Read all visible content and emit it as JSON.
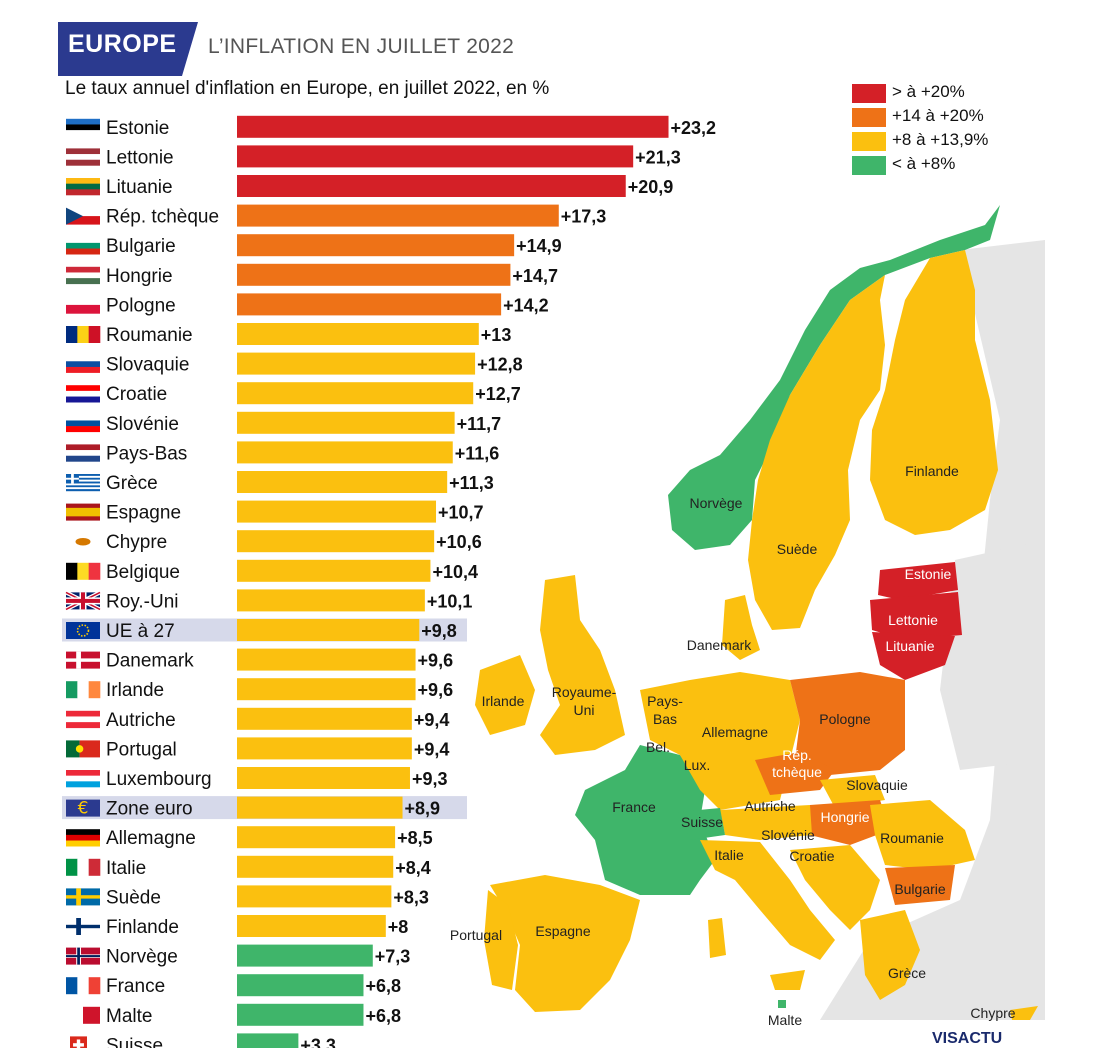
{
  "header": {
    "tag": "EUROPE",
    "title": "L’INFLATION EN JUILLET 2022",
    "subtitle": "Le taux annuel d'inflation en Europe, en juillet 2022, en %"
  },
  "legend": [
    {
      "label": "> à +20%",
      "color": "#d42027"
    },
    {
      "label": "+14 à +20%",
      "color": "#ee7217"
    },
    {
      "label": "+8 à +13,9%",
      "color": "#fbc00f"
    },
    {
      "label": "< à +8%",
      "color": "#3fb56a"
    }
  ],
  "colors": {
    "red": "#d42027",
    "orange": "#ee7217",
    "yellow": "#fbc00f",
    "green": "#3fb56a",
    "highlight": "#d6d9ea",
    "land": "#e5e5e5",
    "navy": "#2b3a8f"
  },
  "chart_data": {
    "type": "bar",
    "orientation": "horizontal",
    "title": "L’INFLATION EN JUILLET 2022",
    "subtitle": "Le taux annuel d'inflation en Europe, en juillet 2022, en %",
    "categories": [
      "Estonie",
      "Lettonie",
      "Lituanie",
      "Rép. tchèque",
      "Bulgarie",
      "Hongrie",
      "Pologne",
      "Roumanie",
      "Slovaquie",
      "Croatie",
      "Slovénie",
      "Pays-Bas",
      "Grèce",
      "Espagne",
      "Chypre",
      "Belgique",
      "Roy.-Uni",
      "UE à 27",
      "Danemark",
      "Irlande",
      "Autriche",
      "Portugal",
      "Luxembourg",
      "Zone euro",
      "Allemagne",
      "Italie",
      "Suède",
      "Finlande",
      "Norvège",
      "France",
      "Malte",
      "Suisse"
    ],
    "values": [
      23.2,
      21.3,
      20.9,
      17.3,
      14.9,
      14.7,
      14.2,
      13,
      12.8,
      12.7,
      11.7,
      11.6,
      11.3,
      10.7,
      10.6,
      10.4,
      10.1,
      9.8,
      9.6,
      9.6,
      9.4,
      9.4,
      9.3,
      8.9,
      8.5,
      8.4,
      8.3,
      8,
      7.3,
      6.8,
      6.8,
      3.3
    ],
    "value_labels": [
      "+23,2",
      "+21,3",
      "+20,9",
      "+17,3",
      "+14,9",
      "+14,7",
      "+14,2",
      "+13",
      "+12,8",
      "+12,7",
      "+11,7",
      "+11,6",
      "+11,3",
      "+10,7",
      "+10,6",
      "+10,4",
      "+10,1",
      "+9,8",
      "+9,6",
      "+9,6",
      "+9,4",
      "+9,4",
      "+9,3",
      "+8,9",
      "+8,5",
      "+8,4",
      "+8,3",
      "+8",
      "+7,3",
      "+6,8",
      "+6,8",
      "+3,3"
    ],
    "highlighted": [
      "UE à 27",
      "Zone euro"
    ],
    "xlim": [
      0,
      24
    ]
  },
  "flags": [
    {
      "name": "Estonie",
      "type": "h",
      "colors": [
        "#1f6fc6",
        "#000000",
        "#ffffff"
      ]
    },
    {
      "name": "Lettonie",
      "type": "h",
      "colors": [
        "#9e3039",
        "#ffffff",
        "#9e3039"
      ]
    },
    {
      "name": "Lituanie",
      "type": "h",
      "colors": [
        "#fdb913",
        "#006a44",
        "#c1272d"
      ]
    },
    {
      "name": "Rép. tchèque",
      "type": "cz",
      "colors": [
        "#ffffff",
        "#d7141a",
        "#11457e"
      ]
    },
    {
      "name": "Bulgarie",
      "type": "h",
      "colors": [
        "#ffffff",
        "#00966e",
        "#d62612"
      ]
    },
    {
      "name": "Hongrie",
      "type": "h",
      "colors": [
        "#ce2939",
        "#ffffff",
        "#477050"
      ]
    },
    {
      "name": "Pologne",
      "type": "h",
      "colors": [
        "#ffffff",
        "#dc143c"
      ]
    },
    {
      "name": "Roumanie",
      "type": "v",
      "colors": [
        "#002b7f",
        "#fcd116",
        "#ce1126"
      ]
    },
    {
      "name": "Slovaquie",
      "type": "h",
      "colors": [
        "#ffffff",
        "#0b4ea2",
        "#ee1c25"
      ]
    },
    {
      "name": "Croatie",
      "type": "h",
      "colors": [
        "#ff0000",
        "#ffffff",
        "#171796"
      ]
    },
    {
      "name": "Slovénie",
      "type": "h",
      "colors": [
        "#ffffff",
        "#0050a0",
        "#ff0000"
      ]
    },
    {
      "name": "Pays-Bas",
      "type": "h",
      "colors": [
        "#ae1c28",
        "#ffffff",
        "#21468b"
      ]
    },
    {
      "name": "Grèce",
      "type": "stripes",
      "colors": [
        "#0d5eaf",
        "#ffffff"
      ]
    },
    {
      "name": "Espagne",
      "type": "es",
      "colors": [
        "#aa151b",
        "#f1bf00",
        "#aa151b"
      ]
    },
    {
      "name": "Chypre",
      "type": "cy",
      "colors": [
        "#ffffff",
        "#d57800"
      ]
    },
    {
      "name": "Belgique",
      "type": "v",
      "colors": [
        "#000000",
        "#fdda24",
        "#ef3340"
      ]
    },
    {
      "name": "Roy.-Uni",
      "type": "uk",
      "colors": [
        "#012169",
        "#ffffff",
        "#c8102e"
      ]
    },
    {
      "name": "UE à 27",
      "type": "eu",
      "colors": [
        "#003399",
        "#ffcc00"
      ]
    },
    {
      "name": "Danemark",
      "type": "nordic",
      "colors": [
        "#c8102e",
        "#ffffff"
      ]
    },
    {
      "name": "Irlande",
      "type": "v",
      "colors": [
        "#169b62",
        "#ffffff",
        "#ff883e"
      ]
    },
    {
      "name": "Autriche",
      "type": "h",
      "colors": [
        "#ed2939",
        "#ffffff",
        "#ed2939"
      ]
    },
    {
      "name": "Portugal",
      "type": "pt",
      "colors": [
        "#046a38",
        "#da291c"
      ]
    },
    {
      "name": "Luxembourg",
      "type": "h",
      "colors": [
        "#ed2939",
        "#ffffff",
        "#00a1de"
      ]
    },
    {
      "name": "Zone euro",
      "type": "euro",
      "colors": [
        "#2b3a8f",
        "#ffcc00"
      ]
    },
    {
      "name": "Allemagne",
      "type": "h",
      "colors": [
        "#000000",
        "#dd0000",
        "#ffce00"
      ]
    },
    {
      "name": "Italie",
      "type": "v",
      "colors": [
        "#009246",
        "#ffffff",
        "#ce2b37"
      ]
    },
    {
      "name": "Suède",
      "type": "nordic",
      "colors": [
        "#006aa7",
        "#fecc00"
      ]
    },
    {
      "name": "Finlande",
      "type": "nordic",
      "colors": [
        "#ffffff",
        "#002f6c"
      ]
    },
    {
      "name": "Norvège",
      "type": "nordic2",
      "colors": [
        "#ba0c2f",
        "#ffffff",
        "#00205b"
      ]
    },
    {
      "name": "France",
      "type": "v",
      "colors": [
        "#0055a4",
        "#ffffff",
        "#ef4135"
      ]
    },
    {
      "name": "Malte",
      "type": "v2",
      "colors": [
        "#ffffff",
        "#cf142b"
      ]
    },
    {
      "name": "Suisse",
      "type": "ch",
      "colors": [
        "#da291c",
        "#ffffff"
      ]
    }
  ],
  "map_labels": [
    {
      "text": "Norvège"
    },
    {
      "text": "Suède"
    },
    {
      "text": "Finlande"
    },
    {
      "text": "Estonie"
    },
    {
      "text": "Lettonie"
    },
    {
      "text": "Lituanie"
    },
    {
      "text": "Danemark"
    },
    {
      "text": "Irlande"
    },
    {
      "text": "Royaume-"
    },
    {
      "text": "Uni"
    },
    {
      "text": "Pays-"
    },
    {
      "text": "Bas"
    },
    {
      "text": "Bel."
    },
    {
      "text": "Allemagne"
    },
    {
      "text": "Pologne"
    },
    {
      "text": "Lux."
    },
    {
      "text": "Rép."
    },
    {
      "text": "tchèque"
    },
    {
      "text": "Slovaquie"
    },
    {
      "text": "France"
    },
    {
      "text": "Suisse"
    },
    {
      "text": "Autriche"
    },
    {
      "text": "Hongrie"
    },
    {
      "text": "Slovénie"
    },
    {
      "text": "Roumanie"
    },
    {
      "text": "Italie"
    },
    {
      "text": "Croatie"
    },
    {
      "text": "Bulgarie"
    },
    {
      "text": "Portugal"
    },
    {
      "text": "Espagne"
    },
    {
      "text": "Grèce"
    },
    {
      "text": "Malte"
    },
    {
      "text": "Chypre"
    }
  ],
  "credit": "VISACTU"
}
